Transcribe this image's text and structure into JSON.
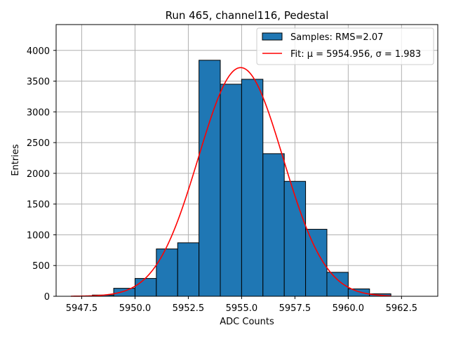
{
  "chart_data": {
    "type": "bar",
    "title": "Run 465, channel116, Pedestal",
    "xlabel": "ADC Counts",
    "ylabel": "Entries",
    "xlim": [
      5946.3,
      5964.2
    ],
    "ylim": [
      0,
      4420
    ],
    "xticks": [
      5947.5,
      5950.0,
      5952.5,
      5955.0,
      5957.5,
      5960.0,
      5962.5
    ],
    "xtick_labels": [
      "5947.5",
      "5950.0",
      "5952.5",
      "5955.0",
      "5957.5",
      "5960.0",
      "5962.5"
    ],
    "yticks": [
      0,
      500,
      1000,
      1500,
      2000,
      2500,
      3000,
      3500,
      4000
    ],
    "ytick_labels": [
      "0",
      "500",
      "1000",
      "1500",
      "2000",
      "2500",
      "3000",
      "3500",
      "4000"
    ],
    "grid": true,
    "legend_position": "top-right",
    "bins": [
      {
        "left": 5948,
        "right": 5949,
        "value": 20
      },
      {
        "left": 5949,
        "right": 5950,
        "value": 130
      },
      {
        "left": 5950,
        "right": 5951,
        "value": 290
      },
      {
        "left": 5951,
        "right": 5952,
        "value": 770
      },
      {
        "left": 5952,
        "right": 5953,
        "value": 870
      },
      {
        "left": 5953,
        "right": 5954,
        "value": 3840
      },
      {
        "left": 5954,
        "right": 5955,
        "value": 3450
      },
      {
        "left": 5955,
        "right": 5956,
        "value": 3530
      },
      {
        "left": 5956,
        "right": 5957,
        "value": 2320
      },
      {
        "left": 5957,
        "right": 5958,
        "value": 1870
      },
      {
        "left": 5958,
        "right": 5959,
        "value": 1090
      },
      {
        "left": 5959,
        "right": 5960,
        "value": 390
      },
      {
        "left": 5960,
        "right": 5961,
        "value": 120
      },
      {
        "left": 5961,
        "right": 5962,
        "value": 40
      }
    ],
    "series": [
      {
        "name": "Samples: RMS=2.07",
        "kind": "histogram",
        "color": "#1f77b4"
      },
      {
        "name": "Fit: μ = 5954.956, σ = 1.983",
        "kind": "gaussian-fit",
        "color": "#ff0000",
        "mu": 5954.956,
        "sigma": 1.983,
        "amplitude": 3720,
        "x_range": [
          5947.0,
          5962.0
        ]
      }
    ]
  }
}
